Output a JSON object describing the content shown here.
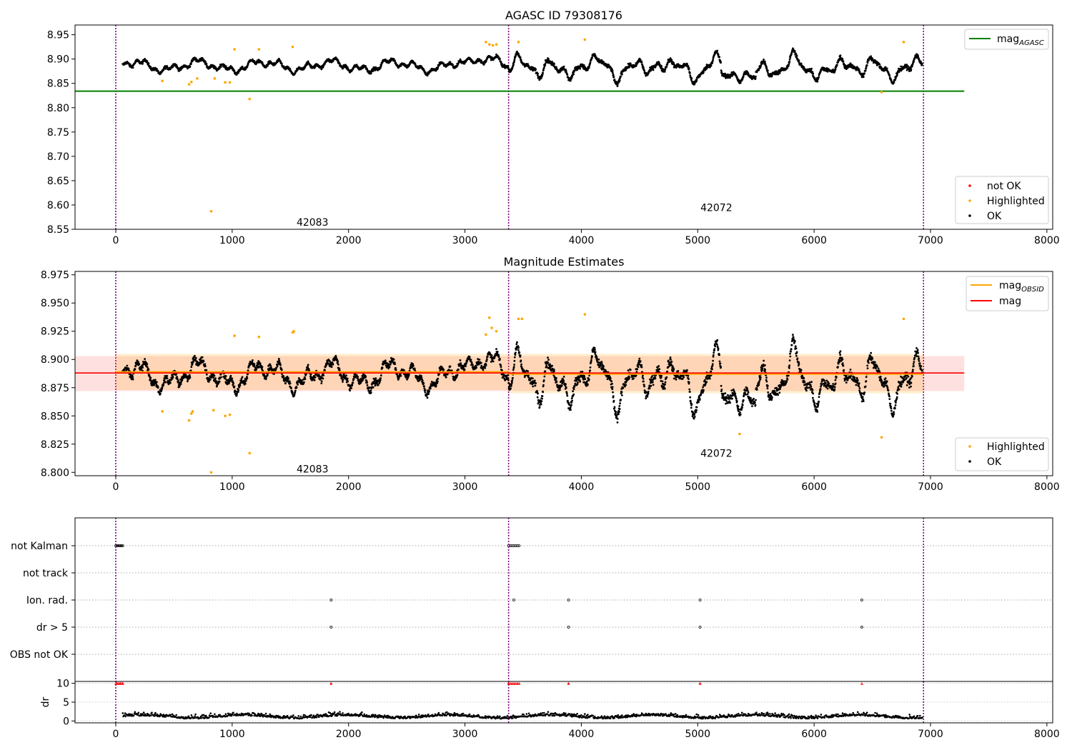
{
  "chart_data": [
    {
      "type": "scatter",
      "title": "AGASC ID 79308176",
      "xlim": [
        -350,
        8050
      ],
      "ylim": [
        8.55,
        8.97
      ],
      "x_ticks": [
        0,
        1000,
        2000,
        3000,
        4000,
        5000,
        6000,
        7000,
        8000
      ],
      "y_ticks": [
        8.55,
        8.6,
        8.65,
        8.7,
        8.75,
        8.8,
        8.85,
        8.9,
        8.95
      ],
      "obs_boundaries": [
        0,
        3375,
        6940
      ],
      "obs_labels": [
        {
          "text": "42083",
          "x": 1690,
          "y": 8.565
        },
        {
          "text": "42072",
          "x": 5160,
          "y": 8.595
        }
      ],
      "reference_line": {
        "name": "mag_AGASC",
        "value": 8.834,
        "color": "#008000",
        "x_range": [
          -350,
          7290
        ]
      },
      "legend_lines": [
        {
          "label": "mag",
          "sub": "AGASC",
          "color": "#008000"
        }
      ],
      "legend_points": [
        {
          "label": "not OK",
          "color": "#ff0000"
        },
        {
          "label": "Highlighted",
          "color": "#ffa500"
        },
        {
          "label": "OK",
          "color": "#000000"
        }
      ],
      "highlighted": [
        [
          400,
          8.855
        ],
        [
          630,
          8.848
        ],
        [
          650,
          8.853
        ],
        [
          700,
          8.86
        ],
        [
          820,
          8.587
        ],
        [
          850,
          8.86
        ],
        [
          940,
          8.852
        ],
        [
          980,
          8.852
        ],
        [
          1020,
          8.92
        ],
        [
          1150,
          8.818
        ],
        [
          1230,
          8.92
        ],
        [
          1520,
          8.925
        ],
        [
          3180,
          8.935
        ],
        [
          3210,
          8.93
        ],
        [
          3240,
          8.928
        ],
        [
          3270,
          8.93
        ],
        [
          3460,
          8.935
        ],
        [
          4030,
          8.94
        ],
        [
          6580,
          8.832
        ],
        [
          6770,
          8.935
        ]
      ]
    },
    {
      "type": "scatter",
      "title": "Magnitude Estimates",
      "xlim": [
        -350,
        8050
      ],
      "ylim": [
        8.797,
        8.978
      ],
      "x_ticks": [
        0,
        1000,
        2000,
        3000,
        4000,
        5000,
        6000,
        7000,
        8000
      ],
      "y_ticks": [
        8.8,
        8.825,
        8.85,
        8.875,
        8.9,
        8.925,
        8.95,
        8.975
      ],
      "obs_boundaries": [
        0,
        3375,
        6940
      ],
      "obs_labels": [
        {
          "text": "42083",
          "x": 1690,
          "y": 8.803
        },
        {
          "text": "42072",
          "x": 5160,
          "y": 8.817
        }
      ],
      "mag": {
        "value": 8.888,
        "band": [
          8.872,
          8.903
        ],
        "x_range": [
          -350,
          7290
        ],
        "color": "#ff0000"
      },
      "mag_obsid": [
        {
          "x_range": [
            0,
            3375
          ],
          "value": 8.889,
          "band": [
            8.873,
            8.905
          ]
        },
        {
          "x_range": [
            3375,
            6940
          ],
          "value": 8.887,
          "band": [
            8.87,
            8.905
          ]
        }
      ],
      "legend_lines": [
        {
          "label": "mag",
          "sub": "OBSID",
          "color": "#ffa500"
        },
        {
          "label": "mag",
          "sub": "",
          "color": "#ff0000"
        }
      ],
      "legend_points": [
        {
          "label": "Highlighted",
          "color": "#ffa500"
        },
        {
          "label": "OK",
          "color": "#000000"
        }
      ],
      "highlighted": [
        [
          400,
          8.854
        ],
        [
          630,
          8.846
        ],
        [
          650,
          8.852
        ],
        [
          660,
          8.854
        ],
        [
          820,
          8.8
        ],
        [
          840,
          8.855
        ],
        [
          940,
          8.85
        ],
        [
          980,
          8.851
        ],
        [
          1020,
          8.921
        ],
        [
          1150,
          8.817
        ],
        [
          1230,
          8.92
        ],
        [
          1520,
          8.924
        ],
        [
          1530,
          8.925
        ],
        [
          3180,
          8.922
        ],
        [
          3210,
          8.937
        ],
        [
          3230,
          8.928
        ],
        [
          3270,
          8.925
        ],
        [
          3460,
          8.936
        ],
        [
          3490,
          8.936
        ],
        [
          4030,
          8.94
        ],
        [
          5360,
          8.834
        ],
        [
          6580,
          8.831
        ],
        [
          6770,
          8.936
        ]
      ]
    },
    {
      "type": "scatter",
      "xlim": [
        -350,
        8050
      ],
      "obs_boundaries": [
        0,
        3375,
        6940
      ],
      "flags": [
        "not Kalman",
        "not track",
        "Ion. rad.",
        "dr > 5",
        "OBS not OK"
      ],
      "flag_points": {
        "not Kalman": [
          0,
          10,
          20,
          30,
          40,
          50,
          60,
          3375,
          3390,
          3405,
          3420,
          3435,
          3450,
          3465
        ],
        "not track": [],
        "Ion. rad.": [
          1850,
          3420,
          3890,
          5020,
          6410
        ],
        "dr > 5": [
          1850,
          3890,
          5020,
          6410
        ],
        "OBS not OK": []
      }
    },
    {
      "type": "scatter",
      "ylabel": "dr",
      "xlim": [
        -350,
        8050
      ],
      "ylim": [
        -0.5,
        10.5
      ],
      "x_ticks": [
        0,
        1000,
        2000,
        3000,
        4000,
        5000,
        6000,
        7000,
        8000
      ],
      "y_ticks": [
        0,
        5,
        10
      ],
      "obs_boundaries": [
        0,
        3375,
        6940
      ],
      "clipped_points": [
        0,
        10,
        20,
        30,
        40,
        50,
        60,
        1850,
        3375,
        3390,
        3405,
        3420,
        3435,
        3450,
        3465,
        3890,
        5020,
        6410
      ]
    }
  ]
}
